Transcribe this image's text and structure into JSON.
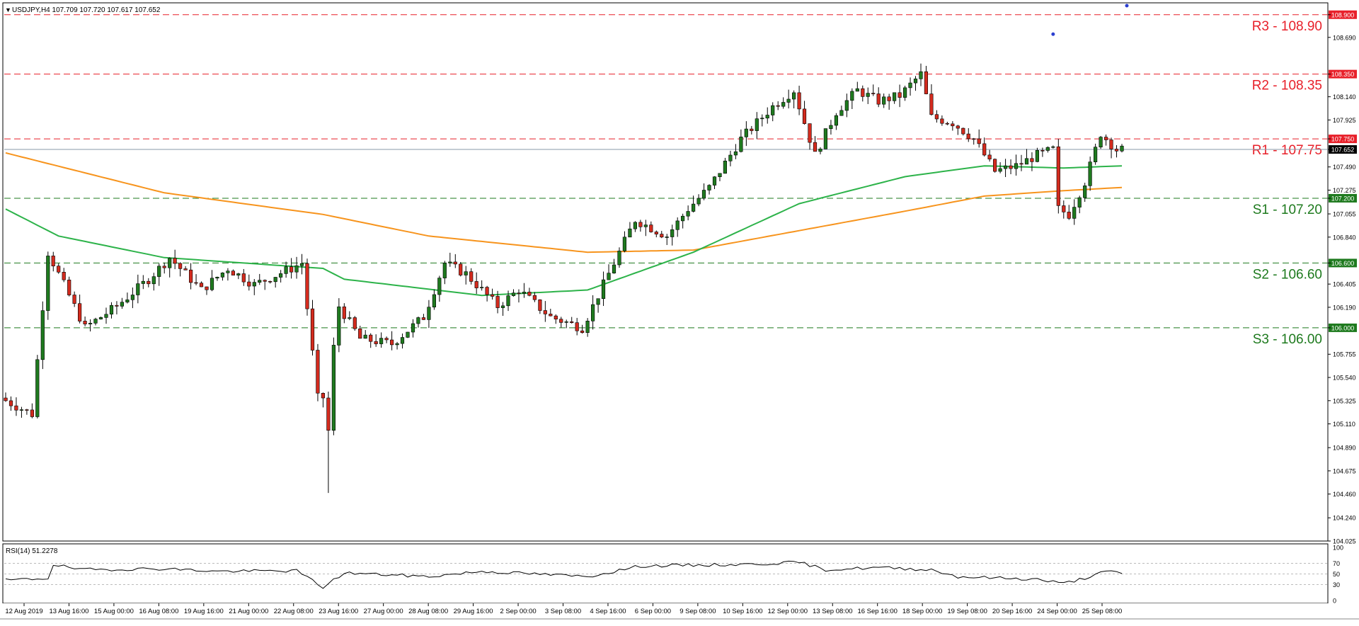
{
  "header": {
    "symbol_line": "USDJPY,H4  107.709 107.720 107.617 107.652"
  },
  "rsi": {
    "label": "RSI(14) 51.2278",
    "ticks": [
      "100",
      "70",
      "50",
      "30",
      "0"
    ],
    "levels": [
      100,
      70,
      50,
      30,
      0
    ]
  },
  "levels": [
    {
      "name": "R3 - 108.90",
      "value": 108.9,
      "badge": "108.900",
      "color": "#e8202a",
      "kind": "resistance"
    },
    {
      "name": "R2 - 108.35",
      "value": 108.35,
      "badge": "108.350",
      "color": "#e8202a",
      "kind": "resistance"
    },
    {
      "name": "R1 - 107.75",
      "value": 107.75,
      "badge": "107.750",
      "color": "#e8202a",
      "kind": "resistance"
    },
    {
      "name": "S1 - 107.20",
      "value": 107.2,
      "badge": "107.200",
      "color": "#1e7a1e",
      "kind": "support"
    },
    {
      "name": "S2 - 106.60",
      "value": 106.6,
      "badge": "106.600",
      "color": "#1e7a1e",
      "kind": "support"
    },
    {
      "name": "S3 - 106.00",
      "value": 106.0,
      "badge": "106.000",
      "color": "#1e7a1e",
      "kind": "support"
    }
  ],
  "current_price": {
    "value": 107.652,
    "badge": "107.652"
  },
  "colors": {
    "bull": "#1f7a1f",
    "bear": "#d42b1e",
    "ma_fast": "#2db34a",
    "ma_slow": "#f7941d",
    "rsi_line": "#000000"
  },
  "chart_data": [
    {
      "type": "candlestick",
      "title": "USDJPY,H4",
      "ylim": [
        104.025,
        109.01
      ],
      "y_ticks": [
        "108.900",
        "108.690",
        "108.350",
        "108.140",
        "107.925",
        "107.750",
        "107.652",
        "107.490",
        "107.275",
        "107.200",
        "107.055",
        "106.840",
        "106.600",
        "106.405",
        "106.190",
        "106.000",
        "105.755",
        "105.540",
        "105.325",
        "105.110",
        "104.890",
        "104.675",
        "104.460",
        "104.240",
        "104.025"
      ],
      "x_ticks": [
        "12 Aug 2019",
        "13 Aug 16:00",
        "15 Aug 00:00",
        "16 Aug 08:00",
        "19 Aug 16:00",
        "21 Aug 00:00",
        "22 Aug 08:00",
        "23 Aug 16:00",
        "27 Aug 00:00",
        "28 Aug 08:00",
        "29 Aug 16:00",
        "2 Sep 00:00",
        "3 Sep 08:00",
        "4 Sep 16:00",
        "6 Sep 00:00",
        "9 Sep 08:00",
        "10 Sep 16:00",
        "12 Sep 00:00",
        "13 Sep 08:00",
        "16 Sep 16:00",
        "18 Sep 00:00",
        "19 Sep 08:00",
        "20 Sep 16:00",
        "24 Sep 00:00",
        "25 Sep 08:00"
      ],
      "anchors": [
        [
          0,
          105.35
        ],
        [
          6,
          105.2
        ],
        [
          9,
          106.7
        ],
        [
          16,
          106.0
        ],
        [
          22,
          106.2
        ],
        [
          28,
          106.45
        ],
        [
          32,
          106.65
        ],
        [
          38,
          106.35
        ],
        [
          43,
          106.55
        ],
        [
          48,
          106.4
        ],
        [
          55,
          106.55
        ],
        [
          57,
          106.6
        ],
        [
          60,
          105.35
        ],
        [
          61,
          105.05
        ],
        [
          64,
          106.2
        ],
        [
          68,
          105.9
        ],
        [
          74,
          105.85
        ],
        [
          80,
          106.1
        ],
        [
          84,
          106.6
        ],
        [
          88,
          106.5
        ],
        [
          94,
          106.2
        ],
        [
          98,
          106.35
        ],
        [
          104,
          106.1
        ],
        [
          110,
          106.0
        ],
        [
          116,
          106.6
        ],
        [
          120,
          107.0
        ],
        [
          126,
          106.85
        ],
        [
          130,
          107.1
        ],
        [
          134,
          107.3
        ],
        [
          140,
          107.75
        ],
        [
          146,
          108.05
        ],
        [
          150,
          108.2
        ],
        [
          154,
          107.6
        ],
        [
          158,
          108.0
        ],
        [
          162,
          108.2
        ],
        [
          166,
          108.1
        ],
        [
          170,
          108.15
        ],
        [
          174,
          108.35
        ],
        [
          176,
          107.95
        ],
        [
          180,
          107.9
        ],
        [
          184,
          107.75
        ],
        [
          188,
          107.45
        ],
        [
          192,
          107.5
        ],
        [
          196,
          107.6
        ],
        [
          199,
          107.65
        ],
        [
          200,
          107.1
        ],
        [
          202,
          107.05
        ],
        [
          205,
          107.35
        ],
        [
          208,
          107.8
        ],
        [
          211,
          107.65
        ]
      ],
      "candles_count": 212,
      "ma_fast_anchors": [
        [
          0,
          107.1
        ],
        [
          10,
          106.85
        ],
        [
          30,
          106.65
        ],
        [
          60,
          106.55
        ],
        [
          64,
          106.45
        ],
        [
          90,
          106.3
        ],
        [
          110,
          106.35
        ],
        [
          130,
          106.7
        ],
        [
          150,
          107.15
        ],
        [
          170,
          107.4
        ],
        [
          185,
          107.5
        ],
        [
          200,
          107.48
        ],
        [
          211,
          107.5
        ]
      ],
      "ma_slow_anchors": [
        [
          0,
          107.62
        ],
        [
          30,
          107.25
        ],
        [
          60,
          107.05
        ],
        [
          80,
          106.85
        ],
        [
          110,
          106.7
        ],
        [
          130,
          106.72
        ],
        [
          150,
          106.9
        ],
        [
          170,
          107.08
        ],
        [
          185,
          107.22
        ],
        [
          200,
          107.27
        ],
        [
          211,
          107.3
        ]
      ],
      "marker_dot": {
        "index": 198,
        "value": 108.72
      }
    },
    {
      "type": "line",
      "title": "RSI(14) 51.2278",
      "ylim": [
        0,
        100
      ],
      "anchors": [
        [
          0,
          38
        ],
        [
          8,
          42
        ],
        [
          9,
          68
        ],
        [
          14,
          58
        ],
        [
          30,
          60
        ],
        [
          40,
          55
        ],
        [
          55,
          56
        ],
        [
          60,
          25
        ],
        [
          64,
          52
        ],
        [
          80,
          45
        ],
        [
          90,
          55
        ],
        [
          110,
          45
        ],
        [
          120,
          65
        ],
        [
          140,
          68
        ],
        [
          150,
          72
        ],
        [
          155,
          58
        ],
        [
          165,
          62
        ],
        [
          175,
          58
        ],
        [
          180,
          45
        ],
        [
          195,
          40
        ],
        [
          200,
          32
        ],
        [
          205,
          45
        ],
        [
          208,
          55
        ],
        [
          211,
          51
        ]
      ]
    }
  ]
}
